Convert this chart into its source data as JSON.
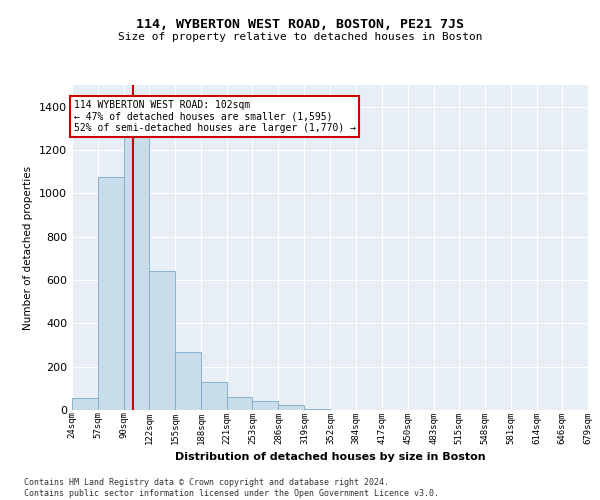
{
  "title": "114, WYBERTON WEST ROAD, BOSTON, PE21 7JS",
  "subtitle": "Size of property relative to detached houses in Boston",
  "xlabel": "Distribution of detached houses by size in Boston",
  "ylabel": "Number of detached properties",
  "bar_color": "#c9dcea",
  "bar_edge_color": "#7aaac8",
  "plot_bg_color": "#e8eef5",
  "vline_x": 102,
  "vline_color": "#cc0000",
  "annotation_text": "114 WYBERTON WEST ROAD: 102sqm\n← 47% of detached houses are smaller (1,595)\n52% of semi-detached houses are larger (1,770) →",
  "footer_text": "Contains HM Land Registry data © Crown copyright and database right 2024.\nContains public sector information licensed under the Open Government Licence v3.0.",
  "bin_edges": [
    24,
    57,
    90,
    122,
    155,
    188,
    221,
    253,
    286,
    319,
    352,
    384,
    417,
    450,
    483,
    515,
    548,
    581,
    614,
    646,
    679
  ],
  "bin_labels": [
    "24sqm",
    "57sqm",
    "90sqm",
    "122sqm",
    "155sqm",
    "188sqm",
    "221sqm",
    "253sqm",
    "286sqm",
    "319sqm",
    "352sqm",
    "384sqm",
    "417sqm",
    "450sqm",
    "483sqm",
    "515sqm",
    "548sqm",
    "581sqm",
    "614sqm",
    "646sqm",
    "679sqm"
  ],
  "bar_heights": [
    55,
    1075,
    1350,
    640,
    270,
    130,
    60,
    40,
    25,
    5,
    0,
    0,
    0,
    0,
    0,
    0,
    0,
    0,
    0,
    0
  ],
  "ylim": [
    0,
    1500
  ],
  "yticks": [
    0,
    200,
    400,
    600,
    800,
    1000,
    1200,
    1400
  ]
}
